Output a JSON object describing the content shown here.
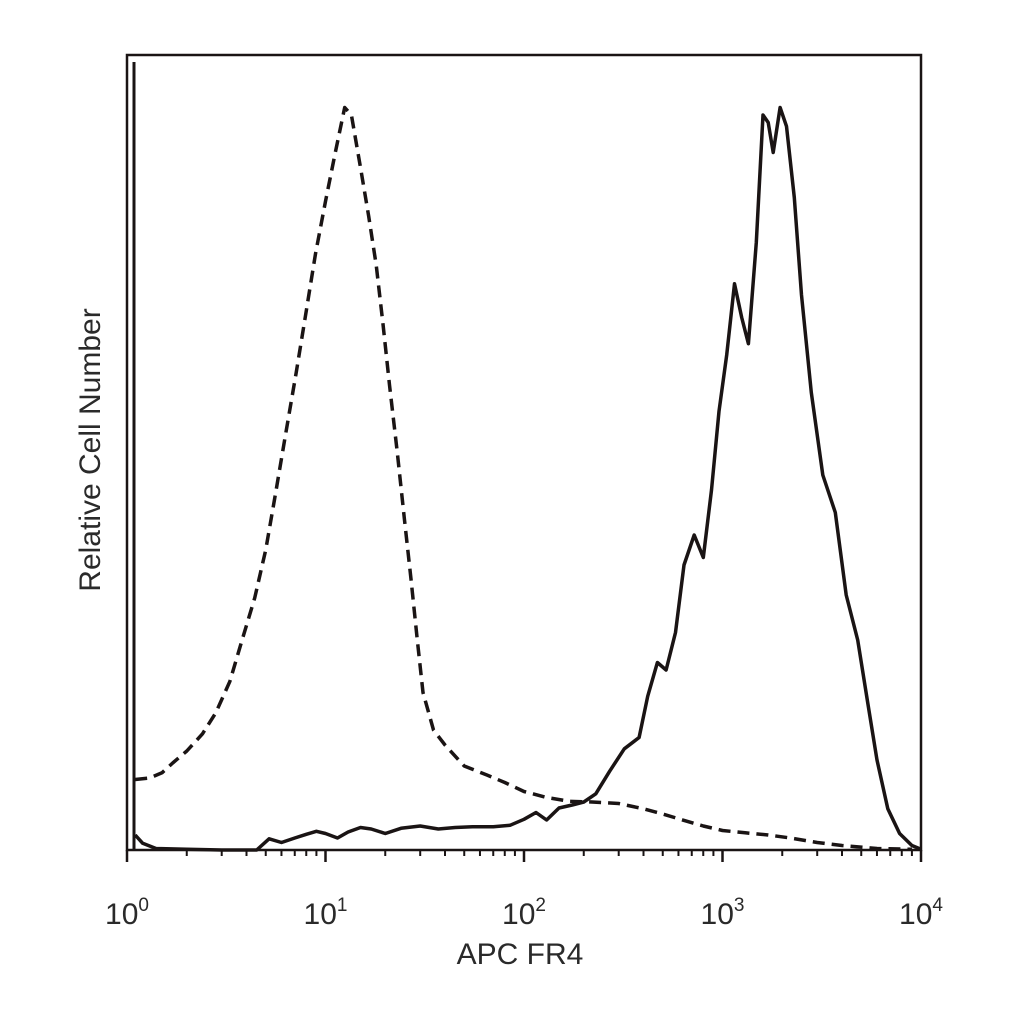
{
  "chart_data": {
    "type": "line",
    "title": "",
    "xlabel": "APC FR4",
    "ylabel": "Relative Cell Number",
    "xscale": "log",
    "xlim": [
      1,
      10000
    ],
    "ylim": [
      0,
      100
    ],
    "grid": false,
    "legend": "none",
    "x_ticks": [
      {
        "value": 1,
        "base": "10",
        "exp": "0"
      },
      {
        "value": 10,
        "base": "10",
        "exp": "1"
      },
      {
        "value": 100,
        "base": "10",
        "exp": "2"
      },
      {
        "value": 1000,
        "base": "10",
        "exp": "3"
      },
      {
        "value": 10000,
        "base": "10",
        "exp": "4"
      }
    ],
    "series": [
      {
        "style": "dashed",
        "color": "#1a1414",
        "points": [
          [
            1.1,
            9.4
          ],
          [
            1.3,
            9.6
          ],
          [
            1.5,
            10.3
          ],
          [
            1.7,
            11.6
          ],
          [
            2.0,
            13.2
          ],
          [
            2.4,
            15.5
          ],
          [
            2.8,
            18.3
          ],
          [
            3.3,
            22.5
          ],
          [
            3.8,
            28.0
          ],
          [
            4.4,
            33.6
          ],
          [
            5.0,
            40.0
          ],
          [
            5.6,
            47.5
          ],
          [
            6.3,
            55.5
          ],
          [
            7.1,
            63.5
          ],
          [
            7.9,
            71.0
          ],
          [
            8.9,
            79.5
          ],
          [
            10.0,
            86.5
          ],
          [
            11.2,
            93.0
          ],
          [
            12.5,
            99.0
          ],
          [
            13.5,
            98.0
          ],
          [
            15.0,
            91.0
          ],
          [
            16.5,
            84.5
          ],
          [
            18.0,
            78.0
          ],
          [
            19.5,
            70.0
          ],
          [
            21.0,
            62.0
          ],
          [
            23.0,
            53.0
          ],
          [
            25.0,
            44.0
          ],
          [
            27.0,
            36.0
          ],
          [
            29.0,
            28.0
          ],
          [
            31.0,
            21.0
          ],
          [
            35.0,
            16.0
          ],
          [
            40.0,
            14.0
          ],
          [
            50.0,
            11.2
          ],
          [
            65.0,
            10.0
          ],
          [
            80.0,
            9.0
          ],
          [
            100.0,
            7.8
          ],
          [
            130.0,
            7.0
          ],
          [
            170.0,
            6.5
          ],
          [
            220.0,
            6.4
          ],
          [
            300.0,
            6.2
          ],
          [
            400.0,
            5.5
          ],
          [
            500.0,
            4.8
          ],
          [
            650.0,
            3.9
          ],
          [
            800.0,
            3.2
          ],
          [
            1000.0,
            2.6
          ],
          [
            1300.0,
            2.3
          ],
          [
            1700.0,
            2.0
          ],
          [
            2200.0,
            1.6
          ],
          [
            3000.0,
            1.0
          ],
          [
            4000.0,
            0.6
          ],
          [
            6000.0,
            0.2
          ],
          [
            9000.0,
            0.1
          ]
        ]
      },
      {
        "style": "solid",
        "color": "#1a1414",
        "points": [
          [
            1.1,
            2.0
          ],
          [
            1.2,
            0.9
          ],
          [
            1.4,
            0.2
          ],
          [
            2.0,
            0.1
          ],
          [
            3.0,
            0.0
          ],
          [
            4.5,
            0.0
          ],
          [
            5.2,
            1.5
          ],
          [
            6.0,
            1.0
          ],
          [
            7.0,
            1.6
          ],
          [
            8.0,
            2.1
          ],
          [
            9.0,
            2.5
          ],
          [
            10.0,
            2.2
          ],
          [
            11.5,
            1.6
          ],
          [
            13.0,
            2.4
          ],
          [
            15.0,
            3.0
          ],
          [
            17.0,
            2.8
          ],
          [
            20.0,
            2.2
          ],
          [
            24.0,
            2.9
          ],
          [
            30.0,
            3.2
          ],
          [
            37.0,
            2.8
          ],
          [
            45.0,
            3.0
          ],
          [
            55.0,
            3.1
          ],
          [
            70.0,
            3.1
          ],
          [
            85.0,
            3.3
          ],
          [
            100.0,
            4.1
          ],
          [
            115.0,
            5.0
          ],
          [
            130.0,
            4.0
          ],
          [
            150.0,
            5.6
          ],
          [
            175.0,
            6.0
          ],
          [
            200.0,
            6.4
          ],
          [
            230.0,
            7.5
          ],
          [
            270.0,
            10.5
          ],
          [
            320.0,
            13.5
          ],
          [
            380.0,
            15.0
          ],
          [
            420.0,
            20.5
          ],
          [
            470.0,
            25.0
          ],
          [
            520.0,
            24.0
          ],
          [
            580.0,
            29.0
          ],
          [
            640.0,
            38.0
          ],
          [
            720.0,
            42.0
          ],
          [
            800.0,
            39.0
          ],
          [
            880.0,
            48.0
          ],
          [
            960.0,
            58.5
          ],
          [
            1050.0,
            66.0
          ],
          [
            1150.0,
            75.5
          ],
          [
            1250.0,
            71.0
          ],
          [
            1350.0,
            67.5
          ],
          [
            1480.0,
            81.0
          ],
          [
            1600.0,
            98.0
          ],
          [
            1700.0,
            97.0
          ],
          [
            1800.0,
            93.0
          ],
          [
            1950.0,
            99.0
          ],
          [
            2100.0,
            96.5
          ],
          [
            2300.0,
            87.0
          ],
          [
            2500.0,
            74.0
          ],
          [
            2800.0,
            61.0
          ],
          [
            3200.0,
            50.0
          ],
          [
            3700.0,
            45.0
          ],
          [
            4200.0,
            34.0
          ],
          [
            4800.0,
            28.0
          ],
          [
            5400.0,
            19.5
          ],
          [
            6000.0,
            12.0
          ],
          [
            6800.0,
            5.5
          ],
          [
            7800.0,
            2.2
          ],
          [
            9000.0,
            0.6
          ],
          [
            10000.0,
            0.1
          ]
        ]
      }
    ]
  }
}
